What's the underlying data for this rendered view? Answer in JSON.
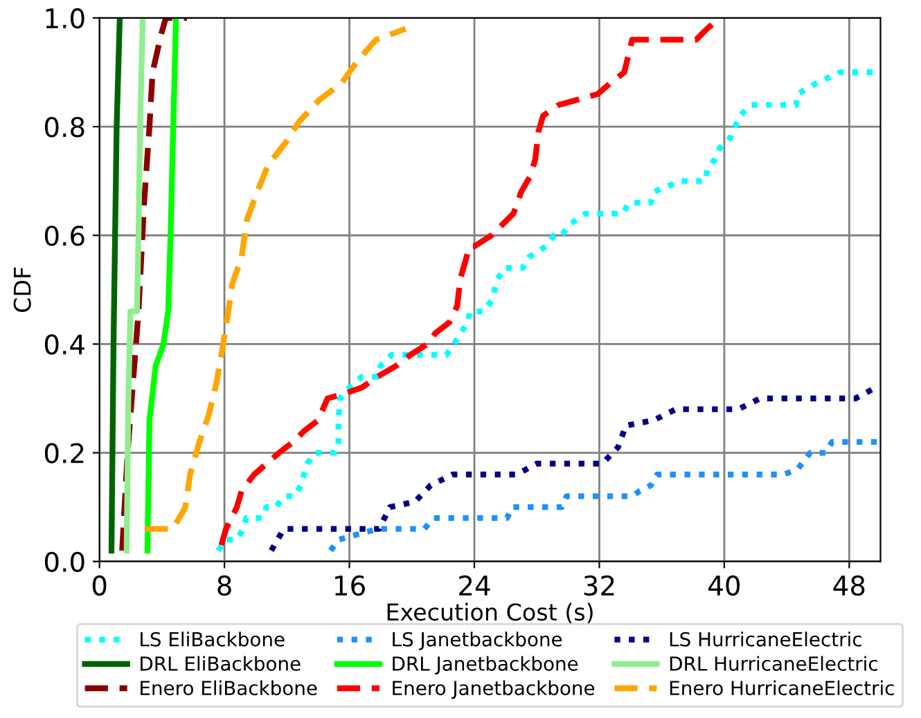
{
  "chart_data": {
    "type": "line",
    "xlabel": "Execution Cost (s)",
    "ylabel": "CDF",
    "xlim": [
      0,
      50
    ],
    "xticks": [
      0,
      8,
      16,
      24,
      32,
      40,
      48
    ],
    "ylim": [
      0,
      1
    ],
    "yticks": [
      {
        "value": 0,
        "label": "0.0"
      },
      {
        "value": 0.2,
        "label": "0.2"
      },
      {
        "value": 0.4,
        "label": "0.4"
      },
      {
        "value": 0.6,
        "label": "0.6"
      },
      {
        "value": 0.8,
        "label": "0.8"
      },
      {
        "value": 1.0,
        "label": "1.0"
      }
    ],
    "grid": true,
    "legend": "bottom",
    "marker": "none",
    "series": [
      {
        "name": "LS EliBackbone",
        "color": "#00ffff",
        "line_style": "dotted",
        "x": [
          7.6,
          8.1,
          8.8,
          9.2,
          9.4,
          10.4,
          10.7,
          11.3,
          11.8,
          12.5,
          12.9,
          13.1,
          13.3,
          13.8,
          15.1,
          15.3,
          15.3,
          15.4,
          16.0,
          16.8,
          17.8,
          18.0,
          18.7,
          19.3,
          22.2,
          22.7,
          23.1,
          23.6,
          23.7,
          24.6,
          25.1,
          25.3,
          25.5,
          25.9,
          27.1,
          27.5,
          28.6,
          29.1,
          29.6,
          30.1,
          31.1,
          33.5,
          33.9,
          35.3,
          35.5,
          37.2,
          38.8,
          38.9,
          39.4,
          39.7,
          40.4,
          41.0,
          41.7,
          44.6,
          44.7,
          45.9,
          47.4,
          50.0
        ],
        "values": [
          0.02,
          0.04,
          0.04,
          0.06,
          0.08,
          0.08,
          0.1,
          0.1,
          0.12,
          0.12,
          0.14,
          0.16,
          0.18,
          0.2,
          0.2,
          0.22,
          0.26,
          0.3,
          0.32,
          0.34,
          0.34,
          0.36,
          0.38,
          0.38,
          0.38,
          0.4,
          0.42,
          0.44,
          0.46,
          0.46,
          0.48,
          0.5,
          0.52,
          0.54,
          0.54,
          0.56,
          0.58,
          0.6,
          0.6,
          0.62,
          0.64,
          0.64,
          0.66,
          0.66,
          0.68,
          0.7,
          0.7,
          0.72,
          0.74,
          0.76,
          0.78,
          0.82,
          0.84,
          0.84,
          0.86,
          0.88,
          0.9,
          0.9
        ]
      },
      {
        "name": "DRL EliBackbone",
        "color": "#006400",
        "line_style": "solid",
        "x": [
          0.77,
          0.9,
          1.0,
          1.1,
          1.3
        ],
        "values": [
          0.02,
          0.4,
          0.6,
          0.8,
          1.0
        ]
      },
      {
        "name": "Enero EliBackbone",
        "color": "#8b0000",
        "line_style": "dashed",
        "x": [
          1.45,
          1.8,
          2.5,
          2.86,
          3.2,
          3.4,
          3.95,
          4.25,
          5.6
        ],
        "values": [
          0.02,
          0.2,
          0.46,
          0.66,
          0.8,
          0.9,
          0.97,
          1.0,
          1.0
        ]
      },
      {
        "name": "LS Janetbackbone",
        "color": "#1e90ff",
        "line_style": "dotted",
        "x": [
          14.8,
          15.3,
          17.8,
          20.8,
          21.4,
          26.1,
          26.4,
          29.6,
          29.9,
          34.1,
          34.6,
          35.3,
          35.7,
          43.8,
          44.7,
          45.5,
          46.5,
          46.9,
          50.0
        ],
        "values": [
          0.02,
          0.04,
          0.06,
          0.06,
          0.08,
          0.08,
          0.1,
          0.1,
          0.12,
          0.12,
          0.13,
          0.14,
          0.16,
          0.16,
          0.17,
          0.2,
          0.2,
          0.22,
          0.22
        ]
      },
      {
        "name": "DRL Janetbackbone",
        "color": "#00ff00",
        "line_style": "solid",
        "x": [
          3.07,
          3.2,
          3.6,
          4.1,
          4.4,
          4.55,
          4.9
        ],
        "values": [
          0.02,
          0.26,
          0.36,
          0.4,
          0.46,
          0.6,
          1.0
        ]
      },
      {
        "name": "Enero Janetbackbone",
        "color": "#ff0000",
        "line_style": "dashed",
        "x": [
          7.8,
          8.1,
          8.8,
          9.1,
          9.9,
          10.7,
          11.5,
          12.4,
          13.1,
          14.0,
          14.6,
          15.8,
          16.8,
          17.8,
          19.0,
          19.9,
          21.0,
          21.5,
          22.4,
          22.9,
          23.1,
          23.4,
          23.7,
          24.0,
          25.1,
          25.8,
          26.5,
          27.0,
          27.6,
          27.9,
          28.1,
          28.4,
          29.4,
          31.9,
          32.7,
          33.6,
          34.1,
          38.2,
          38.9,
          39.7
        ],
        "values": [
          0.03,
          0.06,
          0.1,
          0.13,
          0.16,
          0.18,
          0.2,
          0.22,
          0.24,
          0.26,
          0.3,
          0.31,
          0.32,
          0.34,
          0.36,
          0.38,
          0.4,
          0.42,
          0.44,
          0.47,
          0.52,
          0.55,
          0.58,
          0.58,
          0.6,
          0.62,
          0.64,
          0.68,
          0.71,
          0.74,
          0.79,
          0.82,
          0.84,
          0.86,
          0.88,
          0.9,
          0.96,
          0.96,
          0.98,
          1.0
        ]
      },
      {
        "name": "LS HurricaneElectric",
        "color": "#000080",
        "line_style": "dotted",
        "x": [
          11.0,
          11.8,
          17.9,
          18.6,
          20.2,
          21.2,
          22.6,
          26.7,
          28.0,
          32.2,
          33.2,
          33.7,
          35.5,
          36.9,
          40.9,
          42.3,
          48.4,
          49.7
        ],
        "values": [
          0.02,
          0.06,
          0.06,
          0.1,
          0.11,
          0.14,
          0.16,
          0.16,
          0.18,
          0.18,
          0.21,
          0.25,
          0.26,
          0.28,
          0.28,
          0.3,
          0.3,
          0.32
        ]
      },
      {
        "name": "DRL HurricaneElectric",
        "color": "#90ee90",
        "line_style": "solid",
        "x": [
          1.74,
          1.85,
          1.98,
          2.4,
          2.5,
          2.6,
          2.77
        ],
        "values": [
          0.02,
          0.3,
          0.46,
          0.46,
          0.6,
          0.8,
          1.0
        ]
      },
      {
        "name": "Enero HurricaneElectric",
        "color": "#ffa500",
        "line_style": "dashed",
        "x": [
          2.9,
          4.7,
          5.5,
          5.8,
          6.4,
          7.0,
          7.5,
          7.8,
          8.2,
          8.5,
          9.1,
          9.45,
          10.1,
          10.8,
          11.9,
          12.8,
          14.1,
          15.5,
          16.5,
          17.7,
          19.6
        ],
        "values": [
          0.06,
          0.06,
          0.1,
          0.16,
          0.22,
          0.27,
          0.33,
          0.38,
          0.45,
          0.51,
          0.56,
          0.63,
          0.68,
          0.73,
          0.77,
          0.81,
          0.85,
          0.88,
          0.92,
          0.96,
          0.98
        ]
      }
    ]
  }
}
